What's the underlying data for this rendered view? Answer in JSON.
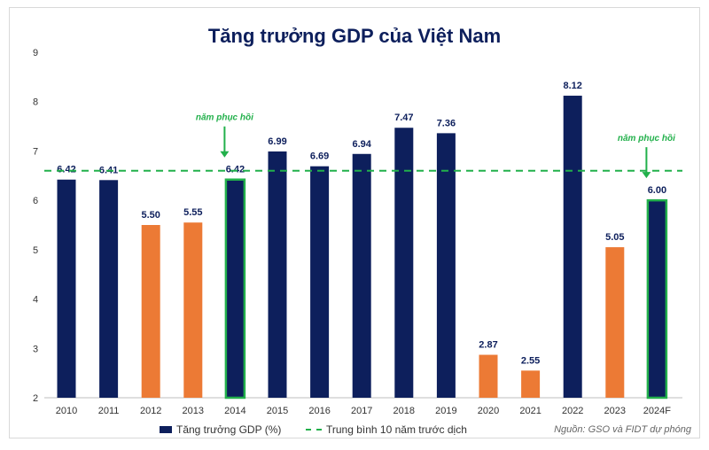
{
  "chart_data": {
    "type": "bar",
    "title": "Tăng trưởng GDP của Việt Nam",
    "categories": [
      "2010",
      "2011",
      "2012",
      "2013",
      "2014",
      "2015",
      "2016",
      "2017",
      "2018",
      "2019",
      "2020",
      "2021",
      "2022",
      "2023",
      "2024F"
    ],
    "values": [
      6.42,
      6.41,
      5.5,
      5.55,
      6.42,
      6.99,
      6.69,
      6.94,
      7.47,
      7.36,
      2.87,
      2.55,
      8.12,
      5.05,
      6.0
    ],
    "value_labels": [
      "6.42",
      "6.41",
      "5.50",
      "5.55",
      "6.42",
      "6.99",
      "6.69",
      "6.94",
      "7.47",
      "7.36",
      "2.87",
      "2.55",
      "8.12",
      "5.05",
      "6.00"
    ],
    "bar_types": [
      "navy",
      "navy",
      "orange",
      "orange",
      "highlight",
      "navy",
      "navy",
      "navy",
      "navy",
      "navy",
      "orange",
      "orange",
      "navy",
      "orange",
      "highlight"
    ],
    "ylim": [
      2,
      9
    ],
    "yticks": [
      2,
      3,
      4,
      5,
      6,
      7,
      8,
      9
    ],
    "average_line": {
      "name": "Trung bình 10 năm trước dịch",
      "value": 6.6
    },
    "series_name": "Tăng trưởng GDP (%)",
    "annotations": [
      {
        "text": "năm phục hồi",
        "category": "2014"
      },
      {
        "text": "năm phục hồi",
        "category": "2024F"
      }
    ],
    "source": "Nguồn: GSO và FIDT dự phóng",
    "legend_position": "bottom"
  },
  "colors": {
    "navy": "#0d1f5c",
    "orange": "#ec7a35",
    "green": "#22b04b"
  }
}
